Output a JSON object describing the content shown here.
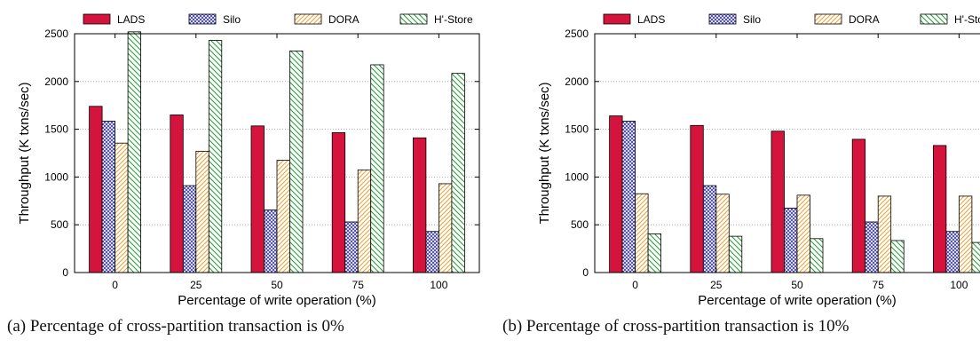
{
  "chart_data": [
    {
      "type": "bar",
      "caption": "(a) Percentage of cross-partition transaction is 0%",
      "xlabel": "Percentage of write operation (%)",
      "ylabel": "Throughput (K txns/sec)",
      "categories": [
        "0",
        "25",
        "50",
        "75",
        "100"
      ],
      "ylim": [
        0,
        2500
      ],
      "yticks": [
        0,
        500,
        1000,
        1500,
        2000,
        2500
      ],
      "grid": true,
      "legend_position": "top",
      "series": [
        {
          "name": "LADS",
          "values": [
            1740,
            1650,
            1535,
            1465,
            1410
          ]
        },
        {
          "name": "Silo",
          "values": [
            1585,
            910,
            655,
            530,
            430
          ]
        },
        {
          "name": "DORA",
          "values": [
            1355,
            1270,
            1175,
            1075,
            930
          ]
        },
        {
          "name": "H'-Store",
          "values": [
            2520,
            2430,
            2320,
            2175,
            2085
          ]
        }
      ]
    },
    {
      "type": "bar",
      "caption": "(b) Percentage of cross-partition transaction is 10%",
      "xlabel": "Percentage of write operation (%)",
      "ylabel": "Throughput (K txns/sec)",
      "categories": [
        "0",
        "25",
        "50",
        "75",
        "100"
      ],
      "ylim": [
        0,
        2500
      ],
      "yticks": [
        0,
        500,
        1000,
        1500,
        2000,
        2500
      ],
      "grid": true,
      "legend_position": "top",
      "series": [
        {
          "name": "LADS",
          "values": [
            1640,
            1540,
            1480,
            1395,
            1330
          ]
        },
        {
          "name": "Silo",
          "values": [
            1585,
            910,
            675,
            530,
            430
          ]
        },
        {
          "name": "DORA",
          "values": [
            825,
            820,
            810,
            800,
            800
          ]
        },
        {
          "name": "H'-Store",
          "values": [
            405,
            380,
            355,
            335,
            315
          ]
        }
      ]
    }
  ],
  "colors": {
    "LADS": "#d4143c",
    "Silo": "#3333aa",
    "DORA": "#e8a43c",
    "H'-Store": "#2e9e3e"
  }
}
